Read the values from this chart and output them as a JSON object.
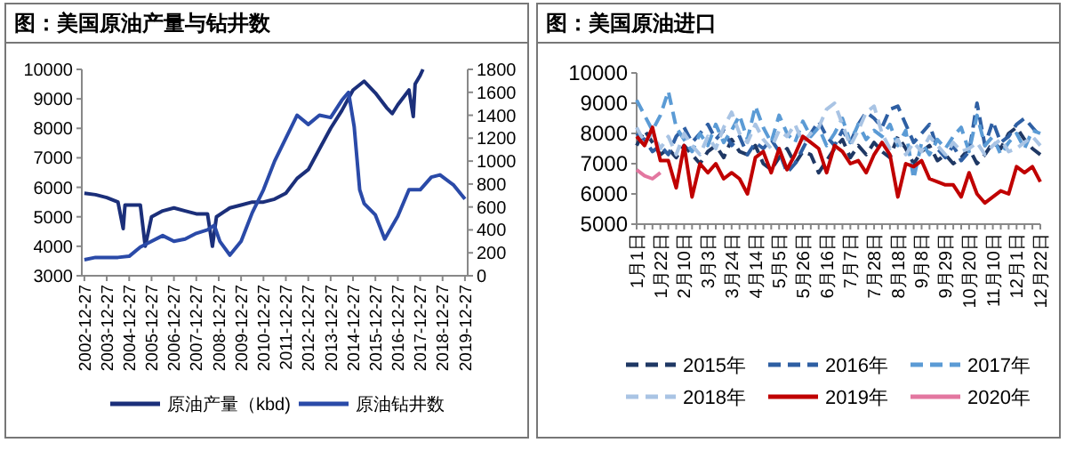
{
  "chart_data": [
    {
      "type": "line",
      "title": "图：美国原油产量与钻井数",
      "legend": "bottom",
      "grid": false,
      "xlim": [
        "2002-11-15",
        "2020-02-10"
      ],
      "xticks": [
        "2002-12-27",
        "2003-12-27",
        "2004-12-27",
        "2005-12-27",
        "2006-12-27",
        "2007-12-27",
        "2008-12-27",
        "2009-12-27",
        "2010-12-27",
        "2011-12-27",
        "2012-12-27",
        "2013-12-27",
        "2014-12-27",
        "2015-12-27",
        "2016-12-27",
        "2017-12-27",
        "2018-12-27",
        "2019-12-27"
      ],
      "ylim": [
        3000,
        10000
      ],
      "yticks": [
        3000,
        4000,
        5000,
        6000,
        7000,
        8000,
        9000,
        10000
      ],
      "y2lim": [
        0,
        1800
      ],
      "y2ticks": [
        0,
        200,
        400,
        600,
        800,
        1000,
        1200,
        1400,
        1600,
        1800
      ],
      "series": [
        {
          "name": "原油产量（kbd)",
          "color": "#1b2f7a",
          "x": [
            "2002-12-27",
            "2003-06-27",
            "2003-12-27",
            "2004-06-27",
            "2004-09-20",
            "2004-10-20",
            "2005-06-27",
            "2005-09-15",
            "2005-12-27",
            "2006-06-27",
            "2006-12-27",
            "2007-06-27",
            "2007-12-27",
            "2008-06-27",
            "2008-09-15",
            "2008-11-20",
            "2009-06-27",
            "2009-12-27",
            "2010-06-27",
            "2010-12-27",
            "2011-06-27",
            "2011-12-27",
            "2012-06-27",
            "2012-12-27",
            "2013-06-27",
            "2013-12-27",
            "2014-06-27",
            "2014-12-27",
            "2015-06-27",
            "2015-12-27",
            "2016-06-27",
            "2016-09-27",
            "2016-12-27",
            "2017-06-27",
            "2017-09-05",
            "2017-10-05",
            "2017-12-27",
            "2018-02-10"
          ],
          "values": [
            5800,
            5750,
            5650,
            5500,
            4600,
            5400,
            5400,
            4000,
            5000,
            5200,
            5300,
            5200,
            5100,
            5100,
            4000,
            5000,
            5300,
            5400,
            5500,
            5500,
            5600,
            5800,
            6300,
            6600,
            7300,
            8000,
            8600,
            9300,
            9600,
            9200,
            8700,
            8500,
            8800,
            9300,
            8400,
            9500,
            9800,
            10000
          ]
        },
        {
          "name": "原油钻井数",
          "color": "#2a4aa8",
          "axis": "y2",
          "x": [
            "2002-12-27",
            "2003-06-27",
            "2004-06-27",
            "2004-12-27",
            "2005-06-27",
            "2005-12-27",
            "2006-06-27",
            "2006-12-27",
            "2007-06-27",
            "2007-12-27",
            "2008-06-27",
            "2008-10-15",
            "2009-01-15",
            "2009-06-27",
            "2009-12-27",
            "2010-06-27",
            "2010-12-27",
            "2011-06-27",
            "2011-12-27",
            "2012-06-27",
            "2012-12-27",
            "2013-06-27",
            "2013-12-27",
            "2014-06-27",
            "2014-10-15",
            "2015-01-15",
            "2015-04-15",
            "2015-06-27",
            "2015-12-27",
            "2016-05-27",
            "2016-12-27",
            "2017-06-27",
            "2017-12-27",
            "2018-06-27",
            "2018-11-15",
            "2019-06-27",
            "2019-12-27"
          ],
          "values": [
            140,
            160,
            160,
            170,
            250,
            300,
            350,
            300,
            320,
            370,
            400,
            440,
            300,
            180,
            300,
            550,
            750,
            1000,
            1200,
            1400,
            1320,
            1400,
            1380,
            1530,
            1600,
            1300,
            750,
            630,
            530,
            320,
            520,
            750,
            750,
            860,
            880,
            790,
            670
          ]
        }
      ]
    },
    {
      "type": "line",
      "title": "图：美国原油进口",
      "legend": "bottom",
      "grid": false,
      "ylim": [
        5000,
        10000
      ],
      "yticks": [
        5000,
        6000,
        7000,
        8000,
        9000,
        10000
      ],
      "categories": [
        "1月1日",
        null,
        null,
        "1月22日",
        null,
        null,
        "2月10日",
        null,
        null,
        "3月3日",
        null,
        null,
        "3月24日",
        null,
        null,
        "4月14日",
        null,
        null,
        "5月5日",
        null,
        null,
        "5月26日",
        null,
        null,
        "6月16日",
        null,
        null,
        "7月7日",
        null,
        null,
        "7月28日",
        null,
        null,
        "8月18日",
        null,
        null,
        "9月8日",
        null,
        null,
        "9月29日",
        null,
        null,
        "10月20日",
        null,
        null,
        "11月10日",
        null,
        null,
        "12月1日",
        null,
        null,
        "12月22日"
      ],
      "series": [
        {
          "name": "2015年",
          "color": "#1f3864",
          "line_style": "dashed",
          "values": [
            7600,
            8100,
            7700,
            7300,
            7500,
            7200,
            7600,
            7300,
            7000,
            7400,
            7600,
            7200,
            7800,
            7400,
            7300,
            7600,
            7000,
            6800,
            7200,
            7500,
            7000,
            7400,
            7300,
            6700,
            7100,
            7500,
            7800,
            7200,
            7600,
            7300,
            7700,
            7400,
            7200,
            7900,
            7500,
            7000,
            7400,
            7600,
            7100,
            7300,
            7000,
            7200,
            7500,
            7000,
            7300,
            7700,
            7500,
            8000,
            8200,
            7800,
            7500,
            7300
          ]
        },
        {
          "name": "2016年",
          "color": "#2e5fa3",
          "line_style": "dashed",
          "values": [
            8000,
            7800,
            7400,
            7600,
            7300,
            7900,
            8200,
            7700,
            8000,
            8300,
            7800,
            8100,
            7600,
            7900,
            7300,
            7700,
            7500,
            7800,
            7400,
            6700,
            7000,
            7500,
            8000,
            8400,
            7900,
            7600,
            8100,
            7700,
            8300,
            8700,
            8500,
            8200,
            8800,
            8900,
            8300,
            7700,
            8000,
            8300,
            7500,
            7200,
            7600,
            7100,
            7400,
            9000,
            7600,
            8400,
            7700,
            7900,
            8300,
            8500,
            8200,
            7900
          ]
        },
        {
          "name": "2017年",
          "color": "#5b9bd5",
          "line_style": "dashed",
          "values": [
            9100,
            8600,
            8100,
            8600,
            9400,
            8200,
            7800,
            7400,
            8000,
            7600,
            8300,
            7700,
            8100,
            8600,
            7800,
            8900,
            8200,
            7700,
            8600,
            8000,
            7700,
            8400,
            7900,
            8200,
            7600,
            8000,
            8500,
            7700,
            8300,
            7800,
            8100,
            7900,
            8300,
            7600,
            8100,
            6500,
            7700,
            7300,
            7800,
            7500,
            7900,
            8200,
            7400,
            8600,
            7600,
            7900,
            7300,
            7700,
            8000,
            7500,
            8100,
            8000
          ]
        },
        {
          "name": "2018年",
          "color": "#a9c4e4",
          "line_style": "dashed",
          "values": [
            8200,
            7700,
            8000,
            7500,
            7900,
            7300,
            8000,
            7600,
            7300,
            7900,
            7500,
            8200,
            8700,
            8000,
            7700,
            8300,
            7800,
            7500,
            8100,
            7900,
            8300,
            7700,
            8000,
            8200,
            8800,
            9000,
            8300,
            7600,
            8100,
            8700,
            8900,
            8000,
            7500,
            7800,
            7300,
            7700,
            7400,
            7900,
            7600,
            7300,
            7700,
            7400,
            7500,
            7700,
            7300,
            7600,
            7800,
            7400,
            7500,
            7700,
            7900,
            7600
          ]
        },
        {
          "name": "2019年",
          "color": "#c00000",
          "line_style": "solid",
          "values": [
            7900,
            7600,
            8200,
            7100,
            7100,
            6200,
            7600,
            5900,
            7000,
            6700,
            7000,
            6500,
            6700,
            6500,
            6000,
            7200,
            7400,
            6700,
            7500,
            6800,
            7300,
            7900,
            7700,
            7500,
            6700,
            7600,
            7400,
            7000,
            7100,
            6700,
            7300,
            7700,
            7300,
            5900,
            7000,
            6900,
            7100,
            6500,
            6400,
            6300,
            6300,
            5900,
            6700,
            6000,
            5700,
            5900,
            6100,
            6000,
            6900,
            6700,
            6900,
            6400
          ]
        },
        {
          "name": "2020年",
          "color": "#e377a0",
          "line_style": "solid",
          "values": [
            6800,
            6600,
            6500,
            6700,
            null,
            null,
            null,
            null,
            null,
            null,
            null,
            null,
            null,
            null,
            null,
            null,
            null,
            null,
            null,
            null,
            null,
            null,
            null,
            null,
            null,
            null,
            null,
            null,
            null,
            null,
            null,
            null,
            null,
            null,
            null,
            null,
            null,
            null,
            null,
            null,
            null,
            null,
            null,
            null,
            null,
            null,
            null,
            null,
            null,
            null,
            null,
            null
          ]
        }
      ]
    }
  ]
}
